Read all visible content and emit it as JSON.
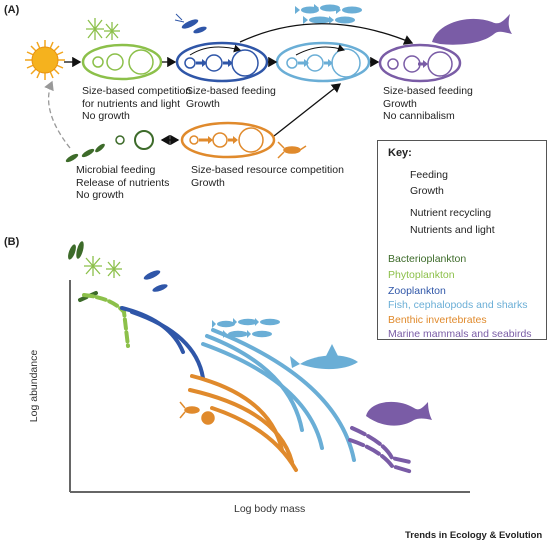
{
  "panel_a": {
    "label": "(A)",
    "phyto_text": [
      "Size-based competition",
      "for nutrients and light",
      "No growth"
    ],
    "zoo_text": [
      "Size-based feeding",
      "Growth"
    ],
    "mammal_text": [
      "Size-based feeding",
      "Growth",
      "No cannibalism"
    ],
    "microbial_text": [
      "Microbial feeding",
      "Release of nutrients",
      "No growth"
    ],
    "benthic_text": [
      "Size-based resource competition",
      "Growth"
    ]
  },
  "key": {
    "title": "Key:",
    "items": [
      {
        "label": "Feeding",
        "icon": "black-arrow-icon"
      },
      {
        "label": "Growth",
        "icon": "blue-thick-arrow-icon"
      },
      {
        "label": "Nutrient recycling",
        "icon": "grey-dashed-arrow-icon"
      },
      {
        "label": "Nutrients and light",
        "icon": "sun-icon"
      }
    ],
    "groups": [
      {
        "label": "Bacterioplankton",
        "color": "#3d6b2a"
      },
      {
        "label": "Phytoplankton",
        "color": "#8cc04a"
      },
      {
        "label": "Zooplankton",
        "color": "#2f56a8"
      },
      {
        "label": "Fish, cephalopods and sharks",
        "color": "#6aaed6"
      },
      {
        "label": "Benthic invertebrates",
        "color": "#e08a2c"
      },
      {
        "label": "Marine mammals and seabirds",
        "color": "#7a5ca6"
      }
    ]
  },
  "panel_b": {
    "label": "(B)",
    "xlabel": "Log body mass",
    "ylabel": "Log abundance"
  },
  "footer": "Trends in Ecology & Evolution"
}
